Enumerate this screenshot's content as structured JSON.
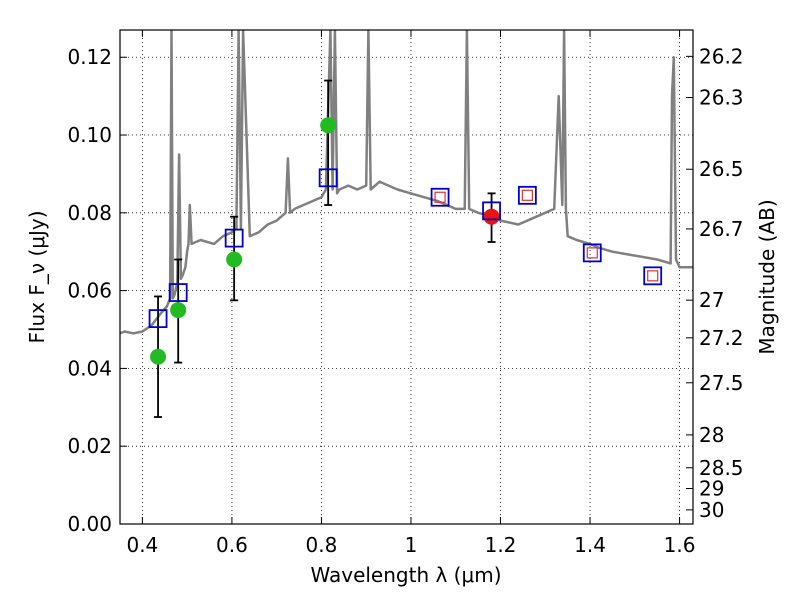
{
  "chart_data": {
    "type": "scatter",
    "xlabel": "Wavelength λ (μm)",
    "ylabel": "Flux F_ν (μJy)",
    "y2label": "Magnitude (AB)",
    "xlim": [
      0.35,
      1.63
    ],
    "ylim": [
      0.0,
      0.127
    ],
    "grid": true,
    "x_ticks": [
      "0.4",
      "0.6",
      "0.8",
      "1",
      "1.2",
      "1.4",
      "1.6"
    ],
    "x_tick_values": [
      0.4,
      0.6,
      0.8,
      1.0,
      1.2,
      1.4,
      1.6
    ],
    "y_ticks": [
      "0.00",
      "0.02",
      "0.04",
      "0.06",
      "0.08",
      "0.10",
      "0.12"
    ],
    "y_tick_values": [
      0.0,
      0.02,
      0.04,
      0.06,
      0.08,
      0.1,
      0.12
    ],
    "mag_ticks": [
      "26.2",
      "26.3",
      "26.5",
      "26.7",
      "27",
      "27.2",
      "27.5",
      "28",
      "28.5",
      "29",
      "30"
    ],
    "mag_tick_values": [
      26.2,
      26.3,
      26.5,
      26.7,
      27.0,
      27.2,
      27.5,
      28.0,
      28.5,
      29.0,
      30.0
    ],
    "colors": {
      "model": "#808080",
      "observed": "#22bb22",
      "observed_special": "#ee1111",
      "model_box": "#0000cc",
      "model_box_inner": "#dd3333",
      "errorbar": "#000000"
    },
    "model_spectrum": {
      "name": "",
      "x": [
        0.35,
        0.36,
        0.38,
        0.4,
        0.42,
        0.44,
        0.455,
        0.462,
        0.465,
        0.468,
        0.472,
        0.478,
        0.482,
        0.486,
        0.49,
        0.496,
        0.5,
        0.503,
        0.506,
        0.51,
        0.53,
        0.56,
        0.58,
        0.6,
        0.61,
        0.615,
        0.62,
        0.625,
        0.64,
        0.66,
        0.68,
        0.7,
        0.72,
        0.725,
        0.73,
        0.74,
        0.76,
        0.78,
        0.8,
        0.81,
        0.82,
        0.825,
        0.83,
        0.835,
        0.84,
        0.86,
        0.88,
        0.9,
        0.905,
        0.91,
        0.93,
        0.95,
        0.97,
        1.0,
        1.03,
        1.06,
        1.08,
        1.1,
        1.12,
        1.125,
        1.13,
        1.15,
        1.18,
        1.2,
        1.24,
        1.28,
        1.3,
        1.32,
        1.33,
        1.338,
        1.342,
        1.346,
        1.35,
        1.37,
        1.4,
        1.42,
        1.45,
        1.5,
        1.55,
        1.58,
        1.583,
        1.587,
        1.592,
        1.6,
        1.62,
        1.63
      ],
      "y": [
        0.049,
        0.0495,
        0.049,
        0.0495,
        0.051,
        0.054,
        0.056,
        0.058,
        0.127,
        0.058,
        0.059,
        0.062,
        0.095,
        0.063,
        0.064,
        0.066,
        0.07,
        0.072,
        0.082,
        0.072,
        0.073,
        0.072,
        0.074,
        0.075,
        0.076,
        0.127,
        0.076,
        0.127,
        0.074,
        0.075,
        0.077,
        0.078,
        0.08,
        0.094,
        0.08,
        0.081,
        0.082,
        0.083,
        0.084,
        0.086,
        0.127,
        0.086,
        0.127,
        0.085,
        0.086,
        0.087,
        0.086,
        0.087,
        0.127,
        0.086,
        0.088,
        0.087,
        0.086,
        0.085,
        0.084,
        0.083,
        0.082,
        0.081,
        0.081,
        0.127,
        0.081,
        0.08,
        0.079,
        0.078,
        0.077,
        0.079,
        0.08,
        0.081,
        0.11,
        0.082,
        0.127,
        0.081,
        0.074,
        0.073,
        0.072,
        0.071,
        0.07,
        0.069,
        0.068,
        0.067,
        0.11,
        0.12,
        0.068,
        0.066,
        0.066,
        0.066
      ]
    },
    "observed": {
      "name": "",
      "x": [
        0.435,
        0.48,
        0.605,
        0.815,
        1.18
      ],
      "y": [
        0.043,
        0.055,
        0.068,
        0.1025,
        0.079
      ],
      "err_low": [
        0.0155,
        0.0135,
        0.0105,
        0.0205,
        0.0065
      ],
      "err_high": [
        0.0155,
        0.013,
        0.011,
        0.0115,
        0.006
      ],
      "highlight_index": 4
    },
    "model_photometry": {
      "name": "",
      "x": [
        0.435,
        0.48,
        0.605,
        0.815,
        1.065,
        1.18,
        1.26,
        1.405,
        1.54
      ],
      "y": [
        0.0528,
        0.0595,
        0.0735,
        0.089,
        0.084,
        0.0805,
        0.0845,
        0.0697,
        0.0638
      ],
      "inner_marker": [
        false,
        false,
        false,
        false,
        true,
        false,
        true,
        true,
        true
      ]
    }
  }
}
